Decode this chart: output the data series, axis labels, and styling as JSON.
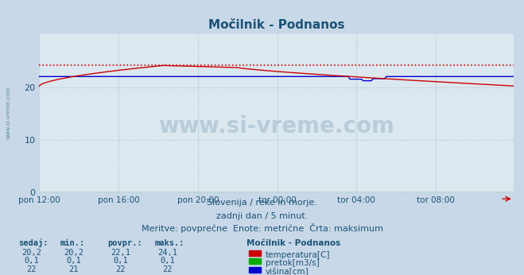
{
  "title": "Močilnik - Podnanos",
  "title_color": "#1a5276",
  "bg_color": "#c8d8e8",
  "plot_bg_color": "#dce8f0",
  "grid_color": "#aabccc",
  "tick_color": "#1a5276",
  "xlim": [
    0,
    287
  ],
  "ylim": [
    0,
    30
  ],
  "yticks": [
    0,
    10,
    20
  ],
  "x_tick_positions": [
    0,
    48,
    96,
    144,
    192,
    240
  ],
  "x_tick_labels": [
    "pon 12:00",
    "pon 16:00",
    "pon 20:00",
    "tor 00:00",
    "tor 04:00",
    "tor 08:00"
  ],
  "watermark_text": "www.si-vreme.com",
  "watermark_color": "#1a5276",
  "watermark_alpha": 0.18,
  "subtitle1": "Slovenija / reke in morje.",
  "subtitle2": "zadnji dan / 5 minut.",
  "subtitle3": "Meritve: povprečne  Enote: metrične  Črta: maksimum",
  "subtitle_color": "#1a5276",
  "legend_title": "Močilnik - Podnanos",
  "legend_title_color": "#1a5276",
  "legend_items": [
    {
      "label": "temperatura[C]",
      "color": "#cc0000"
    },
    {
      "label": "pretok[m3/s]",
      "color": "#00aa00"
    },
    {
      "label": "višina[cm]",
      "color": "#0000cc"
    }
  ],
  "table_headers": [
    "sedaj:",
    "min.:",
    "povpr.:",
    "maks.:"
  ],
  "table_rows": [
    [
      "20,2",
      "20,2",
      "22,1",
      "24,1"
    ],
    [
      "0,1",
      "0,1",
      "0,1",
      "0,1"
    ],
    [
      "22",
      "21",
      "22",
      "22"
    ]
  ],
  "temp_max_line": 24.1,
  "temp_color": "#cc0000",
  "flow_color": "#00aa00",
  "height_color": "#0000cc",
  "n_points": 288
}
